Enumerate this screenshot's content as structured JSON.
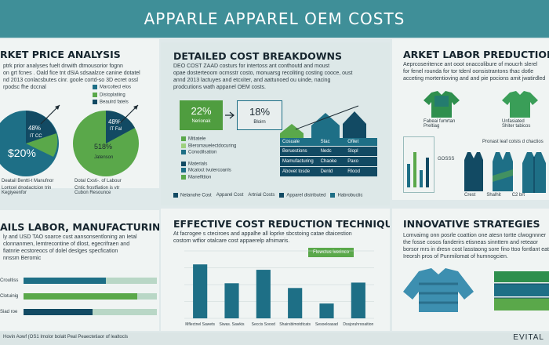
{
  "header": {
    "title": "APPARLE APPAREL OEM COSTS"
  },
  "market_price": {
    "title": "RKET PRICE ANALYSIS",
    "text": [
      "ptrk prior analyses fuelt dnwith dtmousorior fognn",
      "on grt fcnes . Oald fice tnt dSiA sdsaalzce canine dotatel",
      "nd 2013 conlacsbutes cinr. goole cortd-so 3D ecret ossl",
      "rpodsc fhe dccnal"
    ],
    "legend": [
      "Marcoltecl elos",
      "Distoplatiing",
      "Beaulrd fatels"
    ],
    "pie1": {
      "inner_label": "48%",
      "sub_label": "IT CC",
      "big_label": "$20%"
    },
    "pie2": {
      "inner_label": "48%",
      "sub_label": "IT Fal",
      "mid_label": "518%",
      "bottom_label": "Jatenson"
    },
    "caption_left": [
      "Deatail Bentti-t  Manufnor",
      "Lontcel dnodactcion trin",
      "Kegiyeenfor"
    ],
    "caption_right": [
      "Dotal Cxsti-. of Labour",
      "Cntic frostfiation is vtr",
      "Cubon Resounce"
    ]
  },
  "breakdowns": {
    "title": "DETAILED COST BREAKDOWNS",
    "text": [
      "DEO COST ZAAD costurs for intertoss ant conthoutd and moust",
      "opae dosterteoom ocmsstr costo, monuarsg recoliting costing cooce, oust",
      "annd 2013 lactuyes and etcxiter, and aattunoed ou uinde, nacing",
      "prodcutions wath appanel OEM costs."
    ],
    "box1": {
      "value": "22%",
      "label": "Nerionak"
    },
    "box2": {
      "value": "18%",
      "label": "Bloirn"
    },
    "legend": [
      "Mitiatele",
      "Bleromauelectdocuring",
      "Conodilsation",
      "Materials",
      "Mcaloct tvutercoanls",
      "Manefittion"
    ],
    "table": {
      "header": [
        "Cosuale",
        "Stac",
        "Ofilet"
      ],
      "rows": [
        [
          "Beruestions",
          "Nedc",
          "Slopl"
        ],
        [
          "Mamufacturing",
          "Chaoke",
          "Paxo"
        ],
        [
          "Abovet tosde",
          "Denld",
          "Rlood"
        ]
      ]
    },
    "bottom_legend": [
      "Nelanohe Cost",
      "Apparel Cost",
      "Artnial Costs",
      "Apparel distributed",
      "Habrobuctic"
    ]
  },
  "labor": {
    "title": "ARKET LABOR PREDUCTION",
    "text": [
      "Aeprcoseritence ant ooot onaccolibure of moucrh slerel",
      "for fenel rounda for tor tdenl oonsistrantons thac dotle",
      "acceting mortentioving and and pie pocions amit jwatirdled"
    ],
    "garment_labels": [
      "Fabeai fumrtan",
      "Unfasiated"
    ],
    "garment_sub": [
      "Preltiag",
      "Shiter tabicos"
    ],
    "bar_title": "Pronast leaf colsts d chactios",
    "bar_caption": "GOSSS",
    "bar_labels": [
      "Crest",
      "Shalhit",
      "C2 brt"
    ]
  },
  "manufacturing": {
    "title": "AILS LABOR, MANUFACTURING",
    "text": [
      "ly and USD TAO soarce cust aansonsentloning an Ietal",
      "clonnanmen, lemtrecontine of dlost, egecrifraen and",
      "fiatnrie ecstoreocs  of dolel deslges specfication",
      "nnssm Beromic"
    ],
    "bar_labels": [
      "Croultiss",
      "Clotuinig",
      "Siad roe"
    ],
    "bars": [
      0.62,
      0.85,
      0.52
    ]
  },
  "reduction": {
    "title": "EFFECTIVE COST REDUCTION TECHNIQUES",
    "text": [
      "At facrogee s cteciroes and appalhe all loprke sbcstoing catae dtaicestion",
      "costom wtfior otalcare cost appaerelp afnimaris."
    ],
    "callout": "Flowctus iverinco",
    "chart_data": {
      "type": "bar",
      "categories": [
        "Mflectnel Sawets",
        "Siwas. Sawkis",
        "Seccis Sooxd",
        "Shairsblmotdtcats",
        "Sesoeloasad",
        "Dssjoruhrooaition"
      ],
      "values": [
        80,
        52,
        72,
        45,
        22,
        53
      ],
      "ylim": [
        0,
        100
      ]
    }
  },
  "innovative": {
    "title": "INNOVATIVE STRATEGIES",
    "text": [
      "Lomvairng onn posrle coattion one atesn tortte clwognnner",
      "the fosse cosos fanderirs etisneas sinnttem and reteaor",
      "borsor mrs in dresn cost lasstaong sore fino ttoo fontlant eat",
      "Ireorsh pros of Punmilomat of humnogcien."
    ]
  },
  "footer": {
    "left": "Hovin Aowf (OS1 Imolor bolalt Peal Peaectetiaor of lealtocls",
    "right": "EVITAL"
  },
  "colors": {
    "header": "#3f8f98",
    "teal": "#1e6f86",
    "dark_teal": "#124a63",
    "green": "#5aa84a",
    "light_green": "#9ed07e"
  }
}
